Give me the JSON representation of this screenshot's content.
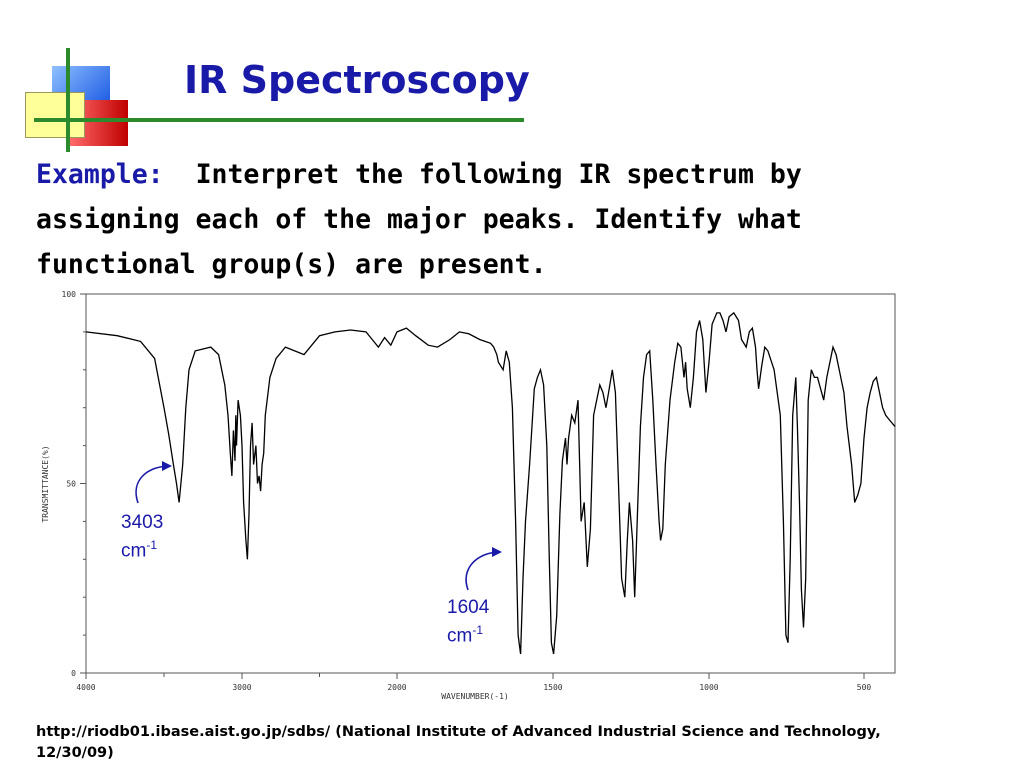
{
  "slide": {
    "title": "IR Spectroscopy",
    "prompt_lead": "Example:",
    "prompt_text": "Interpret the following IR spectrum by assigning each of the major peaks. Identify what functional group(s) are present.",
    "source": "http://riodb01.ibase.aist.go.jp/sdbs/ (National Institute of Advanced Industrial Science and Technology, 12/30/09)"
  },
  "chart_data": {
    "type": "line",
    "xlabel": "WAVENUMBER(-1)",
    "ylabel": "TRANSMITTANCE(%)",
    "xlim": [
      4000,
      400
    ],
    "ylim": [
      0,
      100
    ],
    "x_ticks": [
      4000,
      3000,
      2000,
      1500,
      1000,
      500
    ],
    "x_minor_ticks": [
      3500,
      2500
    ],
    "y_ticks": [
      0,
      50,
      100
    ],
    "grid": false,
    "annotations": [
      {
        "x": 3403,
        "value": "3403",
        "unit": "cm",
        "exponent": "-1"
      },
      {
        "x": 1604,
        "value": "1604",
        "unit": "cm",
        "exponent": "-1"
      }
    ],
    "series": [
      {
        "name": "",
        "color": "#000000",
        "points": [
          [
            4000,
            90
          ],
          [
            3800,
            89
          ],
          [
            3650,
            87.5
          ],
          [
            3560,
            83
          ],
          [
            3500,
            70
          ],
          [
            3470,
            63
          ],
          [
            3440,
            55
          ],
          [
            3420,
            50
          ],
          [
            3403,
            45
          ],
          [
            3380,
            55
          ],
          [
            3360,
            70
          ],
          [
            3340,
            80
          ],
          [
            3300,
            85
          ],
          [
            3200,
            86
          ],
          [
            3150,
            84
          ],
          [
            3110,
            76
          ],
          [
            3090,
            68
          ],
          [
            3075,
            58
          ],
          [
            3065,
            52
          ],
          [
            3055,
            64
          ],
          [
            3045,
            56
          ],
          [
            3040,
            68
          ],
          [
            3035,
            60
          ],
          [
            3025,
            72
          ],
          [
            3010,
            68
          ],
          [
            3000,
            60
          ],
          [
            2990,
            45
          ],
          [
            2975,
            35
          ],
          [
            2965,
            30
          ],
          [
            2955,
            42
          ],
          [
            2945,
            60
          ],
          [
            2935,
            66
          ],
          [
            2925,
            55
          ],
          [
            2910,
            60
          ],
          [
            2900,
            50
          ],
          [
            2890,
            52
          ],
          [
            2880,
            48
          ],
          [
            2870,
            55
          ],
          [
            2860,
            58
          ],
          [
            2850,
            68
          ],
          [
            2820,
            78
          ],
          [
            2780,
            83
          ],
          [
            2720,
            86
          ],
          [
            2660,
            85
          ],
          [
            2600,
            84
          ],
          [
            2560,
            86
          ],
          [
            2500,
            89
          ],
          [
            2400,
            90
          ],
          [
            2300,
            90.5
          ],
          [
            2200,
            90
          ],
          [
            2160,
            88
          ],
          [
            2120,
            86
          ],
          [
            2080,
            88.5
          ],
          [
            2040,
            86.5
          ],
          [
            2000,
            90
          ],
          [
            1970,
            91
          ],
          [
            1940,
            89
          ],
          [
            1900,
            86.5
          ],
          [
            1870,
            86
          ],
          [
            1830,
            88
          ],
          [
            1800,
            90
          ],
          [
            1770,
            89.5
          ],
          [
            1735,
            88
          ],
          [
            1700,
            87
          ],
          [
            1690,
            86
          ],
          [
            1680,
            84
          ],
          [
            1675,
            82
          ],
          [
            1660,
            80
          ],
          [
            1650,
            85
          ],
          [
            1640,
            82
          ],
          [
            1630,
            70
          ],
          [
            1620,
            40
          ],
          [
            1612,
            10
          ],
          [
            1604,
            5
          ],
          [
            1596,
            25
          ],
          [
            1588,
            40
          ],
          [
            1575,
            55
          ],
          [
            1560,
            75
          ],
          [
            1550,
            78
          ],
          [
            1540,
            80
          ],
          [
            1530,
            76
          ],
          [
            1520,
            60
          ],
          [
            1512,
            30
          ],
          [
            1505,
            8
          ],
          [
            1498,
            5
          ],
          [
            1488,
            15
          ],
          [
            1478,
            42
          ],
          [
            1470,
            56
          ],
          [
            1460,
            62
          ],
          [
            1455,
            55
          ],
          [
            1450,
            62
          ],
          [
            1440,
            68
          ],
          [
            1430,
            66
          ],
          [
            1420,
            72
          ],
          [
            1410,
            40
          ],
          [
            1400,
            45
          ],
          [
            1390,
            28
          ],
          [
            1380,
            38
          ],
          [
            1370,
            68
          ],
          [
            1360,
            72
          ],
          [
            1350,
            76
          ],
          [
            1340,
            74
          ],
          [
            1330,
            70
          ],
          [
            1320,
            75
          ],
          [
            1310,
            80
          ],
          [
            1300,
            74
          ],
          [
            1290,
            50
          ],
          [
            1280,
            25
          ],
          [
            1270,
            20
          ],
          [
            1262,
            35
          ],
          [
            1255,
            45
          ],
          [
            1245,
            35
          ],
          [
            1238,
            20
          ],
          [
            1230,
            40
          ],
          [
            1220,
            65
          ],
          [
            1210,
            78
          ],
          [
            1200,
            84
          ],
          [
            1190,
            85
          ],
          [
            1180,
            72
          ],
          [
            1170,
            55
          ],
          [
            1160,
            40
          ],
          [
            1155,
            35
          ],
          [
            1148,
            38
          ],
          [
            1140,
            55
          ],
          [
            1125,
            72
          ],
          [
            1110,
            82
          ],
          [
            1100,
            87
          ],
          [
            1090,
            86
          ],
          [
            1080,
            78
          ],
          [
            1075,
            82
          ],
          [
            1070,
            75
          ],
          [
            1060,
            70
          ],
          [
            1050,
            78
          ],
          [
            1040,
            90
          ],
          [
            1030,
            93
          ],
          [
            1020,
            88
          ],
          [
            1010,
            74
          ],
          [
            1000,
            82
          ],
          [
            990,
            92
          ],
          [
            975,
            95
          ],
          [
            965,
            95
          ],
          [
            955,
            93
          ],
          [
            945,
            90
          ],
          [
            935,
            94
          ],
          [
            920,
            95
          ],
          [
            905,
            93
          ],
          [
            895,
            88
          ],
          [
            880,
            86
          ],
          [
            870,
            90
          ],
          [
            860,
            91
          ],
          [
            850,
            86
          ],
          [
            845,
            80
          ],
          [
            840,
            75
          ],
          [
            830,
            81
          ],
          [
            820,
            86
          ],
          [
            810,
            85
          ],
          [
            790,
            80
          ],
          [
            770,
            68
          ],
          [
            760,
            40
          ],
          [
            752,
            10
          ],
          [
            745,
            8
          ],
          [
            738,
            30
          ],
          [
            730,
            68
          ],
          [
            720,
            78
          ],
          [
            715,
            65
          ],
          [
            708,
            45
          ],
          [
            702,
            22
          ],
          [
            695,
            12
          ],
          [
            688,
            25
          ],
          [
            680,
            72
          ],
          [
            670,
            80
          ],
          [
            660,
            78
          ],
          [
            650,
            78
          ],
          [
            640,
            75
          ],
          [
            630,
            72
          ],
          [
            620,
            78
          ],
          [
            610,
            82
          ],
          [
            600,
            86
          ],
          [
            590,
            84
          ],
          [
            580,
            80
          ],
          [
            565,
            74
          ],
          [
            555,
            65
          ],
          [
            540,
            55
          ],
          [
            530,
            45
          ],
          [
            520,
            47
          ],
          [
            510,
            50
          ],
          [
            500,
            62
          ],
          [
            490,
            70
          ],
          [
            480,
            74
          ],
          [
            470,
            77
          ],
          [
            460,
            78
          ],
          [
            450,
            74
          ],
          [
            440,
            70
          ],
          [
            430,
            68
          ],
          [
            420,
            67
          ],
          [
            410,
            66
          ],
          [
            400,
            65
          ]
        ]
      }
    ]
  }
}
